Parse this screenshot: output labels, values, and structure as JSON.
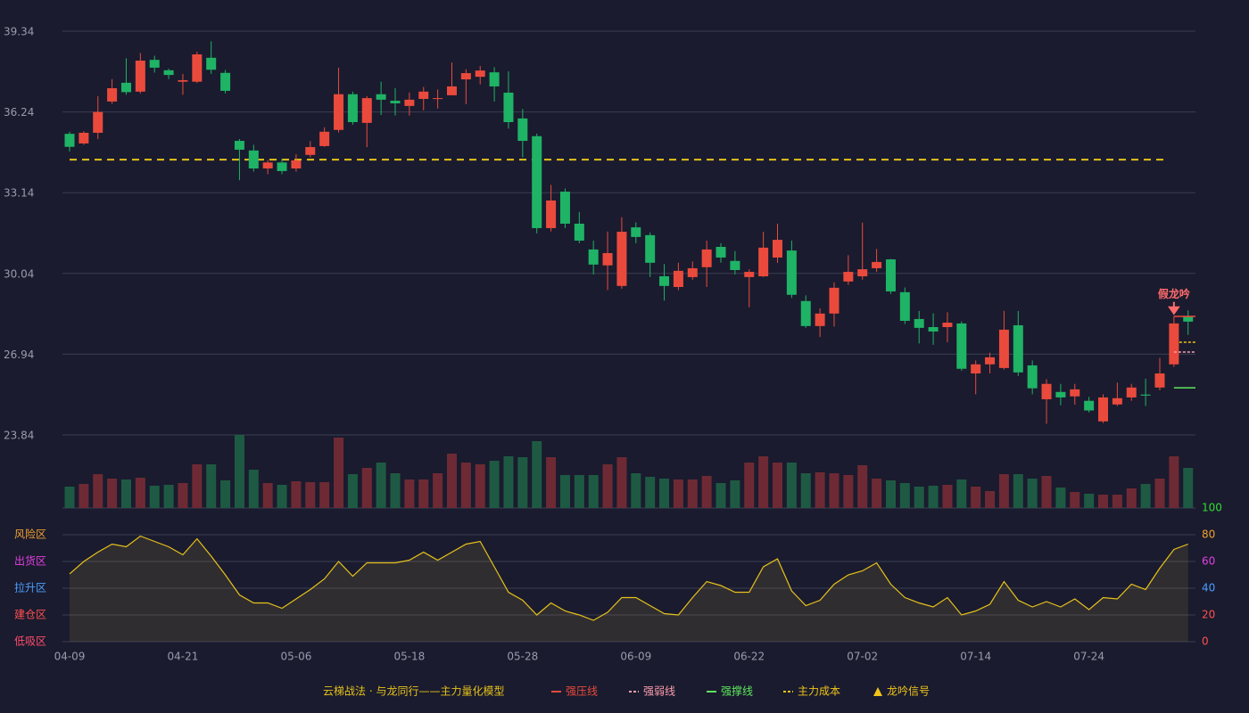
{
  "chart_data": {
    "type": "candlestick",
    "categories": [
      "04-09",
      null,
      null,
      null,
      null,
      null,
      null,
      null,
      "04-21",
      null,
      null,
      null,
      null,
      null,
      null,
      null,
      "05-06",
      null,
      null,
      null,
      null,
      null,
      null,
      null,
      "05-18",
      null,
      null,
      null,
      null,
      null,
      null,
      null,
      "05-28",
      null,
      null,
      null,
      null,
      null,
      null,
      null,
      "06-09",
      null,
      null,
      null,
      null,
      null,
      null,
      null,
      "06-22",
      null,
      null,
      null,
      null,
      null,
      null,
      null,
      "07-02",
      null,
      null,
      null,
      null,
      null,
      null,
      null,
      "07-14",
      null,
      null,
      null,
      null,
      null,
      null,
      null,
      "07-24",
      null,
      null,
      null,
      null,
      null,
      null,
      null
    ],
    "open": [
      35.4,
      35.03,
      35.44,
      36.64,
      37.36,
      37.02,
      38.24,
      37.84,
      37.4,
      37.4,
      38.32,
      37.74,
      35.13,
      34.76,
      34.07,
      34.3,
      34.07,
      34.59,
      34.93,
      35.55,
      36.92,
      35.82,
      36.92,
      36.67,
      36.47,
      36.74,
      36.74,
      36.88,
      37.49,
      37.59,
      37.76,
      36.98,
      35.99,
      35.31,
      31.78,
      33.18,
      31.95,
      30.96,
      30.35,
      29.56,
      31.81,
      31.51,
      29.93,
      29.52,
      29.9,
      30.28,
      31.06,
      30.52,
      29.9,
      29.93,
      30.65,
      30.92,
      28.98,
      28.02,
      28.5,
      29.73,
      29.93,
      30.24,
      30.58,
      29.32,
      28.29,
      27.98,
      27.98,
      28.12,
      26.2,
      26.55,
      26.41,
      28.05,
      26.51,
      25.21,
      25.49,
      25.32,
      25.15,
      24.36,
      25.01,
      25.28,
      25.39,
      25.66,
      26.55,
      28.39
    ],
    "high": [
      35.48,
      35.5,
      36.85,
      37.5,
      38.3,
      38.5,
      38.4,
      37.9,
      37.7,
      38.55,
      38.95,
      37.85,
      35.2,
      34.98,
      34.4,
      34.45,
      34.62,
      35.12,
      35.65,
      37.94,
      37.02,
      36.85,
      37.4,
      37.15,
      36.99,
      37.2,
      37.1,
      38.14,
      37.88,
      38.0,
      37.96,
      37.8,
      36.35,
      35.41,
      33.44,
      33.3,
      32.4,
      31.3,
      31.65,
      32.2,
      32.0,
      31.61,
      30.4,
      30.45,
      30.5,
      31.3,
      31.2,
      30.9,
      30.2,
      31.64,
      31.95,
      31.3,
      29.2,
      28.7,
      29.7,
      30.74,
      31.99,
      30.98,
      30.6,
      29.5,
      28.6,
      28.51,
      28.55,
      28.2,
      26.7,
      27.0,
      28.6,
      28.6,
      26.7,
      25.98,
      25.8,
      25.8,
      25.3,
      25.4,
      25.85,
      25.8,
      26.0,
      26.8,
      28.4,
      28.62
    ],
    "low": [
      34.72,
      34.98,
      35.2,
      36.55,
      36.9,
      36.95,
      37.75,
      37.5,
      36.9,
      37.35,
      37.7,
      36.95,
      33.62,
      33.95,
      33.85,
      33.85,
      33.95,
      34.5,
      34.9,
      35.45,
      35.75,
      34.89,
      36.12,
      36.1,
      36.1,
      36.3,
      36.37,
      36.88,
      36.54,
      37.3,
      36.64,
      35.6,
      34.5,
      31.58,
      31.65,
      31.78,
      31.2,
      30.0,
      29.4,
      29.45,
      31.2,
      29.9,
      29.0,
      29.4,
      29.8,
      29.52,
      30.45,
      30.0,
      28.74,
      29.9,
      30.45,
      29.1,
      27.95,
      27.6,
      28.0,
      29.6,
      29.8,
      30.1,
      29.25,
      28.1,
      27.35,
      27.3,
      27.4,
      26.3,
      25.4,
      26.2,
      26.35,
      26.1,
      25.4,
      24.27,
      24.98,
      25.0,
      24.7,
      24.3,
      24.95,
      25.15,
      24.95,
      25.55,
      26.45,
      27.68
    ],
    "close": [
      34.9,
      35.44,
      36.24,
      37.15,
      37.0,
      38.21,
      37.94,
      37.66,
      37.46,
      38.45,
      37.86,
      37.05,
      34.79,
      34.07,
      34.3,
      33.97,
      34.38,
      34.89,
      35.48,
      36.92,
      35.85,
      36.77,
      36.71,
      36.57,
      36.71,
      37.02,
      36.77,
      37.22,
      37.73,
      37.83,
      37.22,
      35.85,
      35.13,
      31.78,
      32.84,
      31.95,
      31.3,
      30.38,
      30.82,
      31.64,
      31.44,
      30.45,
      29.56,
      30.14,
      30.24,
      30.96,
      30.65,
      30.17,
      30.1,
      31.03,
      31.33,
      29.22,
      28.02,
      28.5,
      29.49,
      30.1,
      30.2,
      30.48,
      29.35,
      28.22,
      27.95,
      27.81,
      28.15,
      26.38,
      26.55,
      26.82,
      27.88,
      26.24,
      25.63,
      25.8,
      25.28,
      25.59,
      24.78,
      25.28,
      25.25,
      25.66,
      25.35,
      26.2,
      28.12,
      28.19
    ],
    "volume": [
      24,
      27,
      38,
      33,
      32,
      34,
      25,
      26,
      28,
      49,
      49,
      31,
      82,
      43,
      28,
      26,
      30,
      29,
      29,
      79,
      38,
      45,
      51,
      39,
      32,
      32,
      39,
      61,
      51,
      49,
      53,
      58,
      57,
      75,
      57,
      37,
      37,
      37,
      49,
      57,
      39,
      35,
      33,
      32,
      32,
      36,
      28,
      31,
      51,
      58,
      51,
      51,
      39,
      40,
      39,
      37,
      48,
      33,
      31,
      28,
      24,
      25,
      26,
      32,
      24,
      19,
      38,
      38,
      33,
      36,
      23,
      18,
      16,
      15,
      15,
      22,
      27,
      33,
      58,
      45
    ],
    "up_color": "#ea4a3c",
    "down_color": "#1fb366",
    "up_volume_color": "#6e2a34",
    "down_volume_color": "#1e5a43",
    "ylim": [
      23.84,
      39.34
    ],
    "yticks": [
      23.84,
      26.94,
      30.04,
      33.14,
      36.24,
      39.34
    ],
    "grid": true,
    "cost_line": {
      "value": 34.41,
      "color": "#e6c21a"
    },
    "levels": [
      {
        "name": "强压线",
        "color": "#ea4a3c",
        "dash": false,
        "value": 28.39
      },
      {
        "name": "强弱线",
        "color": "#ff9fb0",
        "dash": true,
        "value": 27.02
      },
      {
        "name": "强撑线",
        "color": "#5fe85f",
        "dash": false,
        "value": 25.65
      },
      {
        "name": "主力成本",
        "color": "#f0c419",
        "dash": true,
        "value": 27.4
      }
    ],
    "signal": {
      "name": "龙吟信号",
      "color": "#f0c419",
      "label": "假龙吟",
      "label_color": "#ff6b6b",
      "index": 78
    },
    "indicator": {
      "name": "云梯战法 · 与龙同行——主力量化模型",
      "color": "#e6c21a",
      "values": [
        50.7,
        60,
        67,
        73,
        71,
        79,
        75,
        71,
        65,
        77,
        64,
        50,
        35,
        29,
        29,
        25,
        32,
        39,
        47,
        60,
        49,
        59,
        59,
        59,
        61,
        67,
        61,
        67,
        73,
        75,
        56,
        37,
        31,
        20,
        29,
        23,
        20,
        16,
        22,
        33,
        33,
        27,
        21,
        20,
        33,
        45,
        42,
        37,
        37,
        56,
        62,
        38,
        27,
        31,
        43,
        50,
        53,
        59,
        43,
        33,
        29,
        26,
        33,
        20,
        23,
        28,
        45,
        31,
        26,
        30,
        26,
        32,
        24,
        33,
        32,
        43,
        39,
        55,
        69,
        73
      ]
    },
    "y2lim": [
      0,
      100
    ],
    "y2ticks": [
      0,
      20,
      40,
      60,
      80,
      100
    ],
    "y2tick_colors": [
      "#ff5050",
      "#ff5050",
      "#4a9eff",
      "#e040e0",
      "#f0a030",
      "#33dd33"
    ],
    "zones": [
      {
        "label": "风险区",
        "value": 80,
        "color": "#f0a030"
      },
      {
        "label": "出货区",
        "value": 60,
        "color": "#e040e0"
      },
      {
        "label": "拉升区",
        "value": 40,
        "color": "#4a9eff"
      },
      {
        "label": "建仓区",
        "value": 20,
        "color": "#ff5050"
      },
      {
        "label": "低吸区",
        "value": 0,
        "color": "#ff4d6d"
      }
    ]
  }
}
